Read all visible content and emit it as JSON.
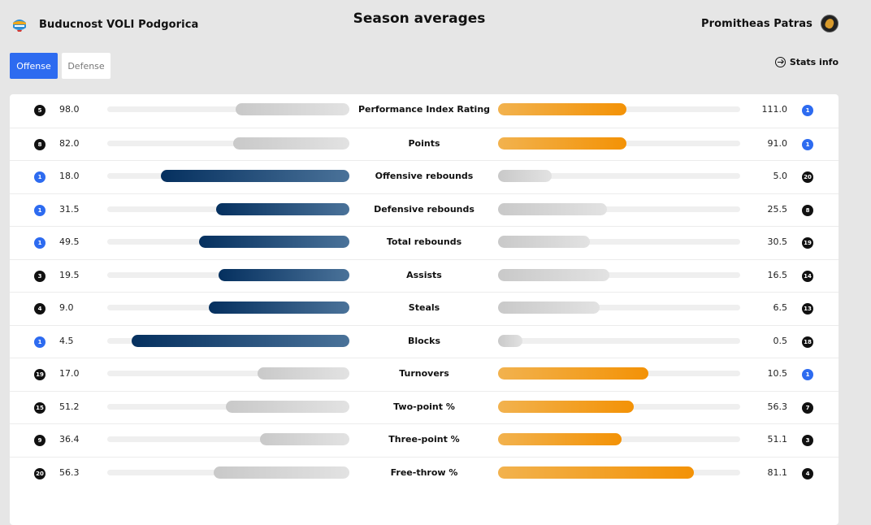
{
  "header": {
    "title": "Season averages",
    "home_team": "Buducnost VOLI Podgorica",
    "away_team": "Promitheas Patras"
  },
  "tabs": [
    {
      "label": "Offense",
      "active": true
    },
    {
      "label": "Defense",
      "active": false
    }
  ],
  "stats_info_label": "Stats info",
  "colors": {
    "home_leader": "#0b3a6b",
    "away_leader": "#f39a12",
    "neutral": "#d6d6d6",
    "top_rank": "#2d6bf0",
    "tab_active": "#2d6bf0"
  },
  "stats": [
    {
      "label": "Performance Index Rating",
      "home_value": "98.0",
      "home_rank": "5",
      "away_value": "111.0",
      "away_rank": "1",
      "home_fill": 0.47,
      "away_fill": 0.53,
      "leader": "away"
    },
    {
      "label": "Points",
      "home_value": "82.0",
      "home_rank": "8",
      "away_value": "91.0",
      "away_rank": "1",
      "home_fill": 0.48,
      "away_fill": 0.53,
      "leader": "away"
    },
    {
      "label": "Offensive rebounds",
      "home_value": "18.0",
      "home_rank": "1",
      "away_value": "5.0",
      "away_rank": "20",
      "home_fill": 0.78,
      "away_fill": 0.22,
      "leader": "home"
    },
    {
      "label": "Defensive rebounds",
      "home_value": "31.5",
      "home_rank": "1",
      "away_value": "25.5",
      "away_rank": "8",
      "home_fill": 0.55,
      "away_fill": 0.45,
      "leader": "home"
    },
    {
      "label": "Total rebounds",
      "home_value": "49.5",
      "home_rank": "1",
      "away_value": "30.5",
      "away_rank": "19",
      "home_fill": 0.62,
      "away_fill": 0.38,
      "leader": "home"
    },
    {
      "label": "Assists",
      "home_value": "19.5",
      "home_rank": "3",
      "away_value": "16.5",
      "away_rank": "14",
      "home_fill": 0.54,
      "away_fill": 0.46,
      "leader": "home"
    },
    {
      "label": "Steals",
      "home_value": "9.0",
      "home_rank": "4",
      "away_value": "6.5",
      "away_rank": "13",
      "home_fill": 0.58,
      "away_fill": 0.42,
      "leader": "home"
    },
    {
      "label": "Blocks",
      "home_value": "4.5",
      "home_rank": "1",
      "away_value": "0.5",
      "away_rank": "18",
      "home_fill": 0.9,
      "away_fill": 0.1,
      "leader": "home"
    },
    {
      "label": "Turnovers",
      "home_value": "17.0",
      "home_rank": "19",
      "away_value": "10.5",
      "away_rank": "1",
      "home_fill": 0.38,
      "away_fill": 0.62,
      "leader": "away"
    },
    {
      "label": "Two-point %",
      "home_value": "51.2",
      "home_rank": "15",
      "away_value": "56.3",
      "away_rank": "7",
      "home_fill": 0.51,
      "away_fill": 0.56,
      "leader": "away"
    },
    {
      "label": "Three-point %",
      "home_value": "36.4",
      "home_rank": "9",
      "away_value": "51.1",
      "away_rank": "3",
      "home_fill": 0.37,
      "away_fill": 0.51,
      "leader": "away"
    },
    {
      "label": "Free-throw %",
      "home_value": "56.3",
      "home_rank": "20",
      "away_value": "81.1",
      "away_rank": "4",
      "home_fill": 0.56,
      "away_fill": 0.81,
      "leader": "away"
    }
  ]
}
